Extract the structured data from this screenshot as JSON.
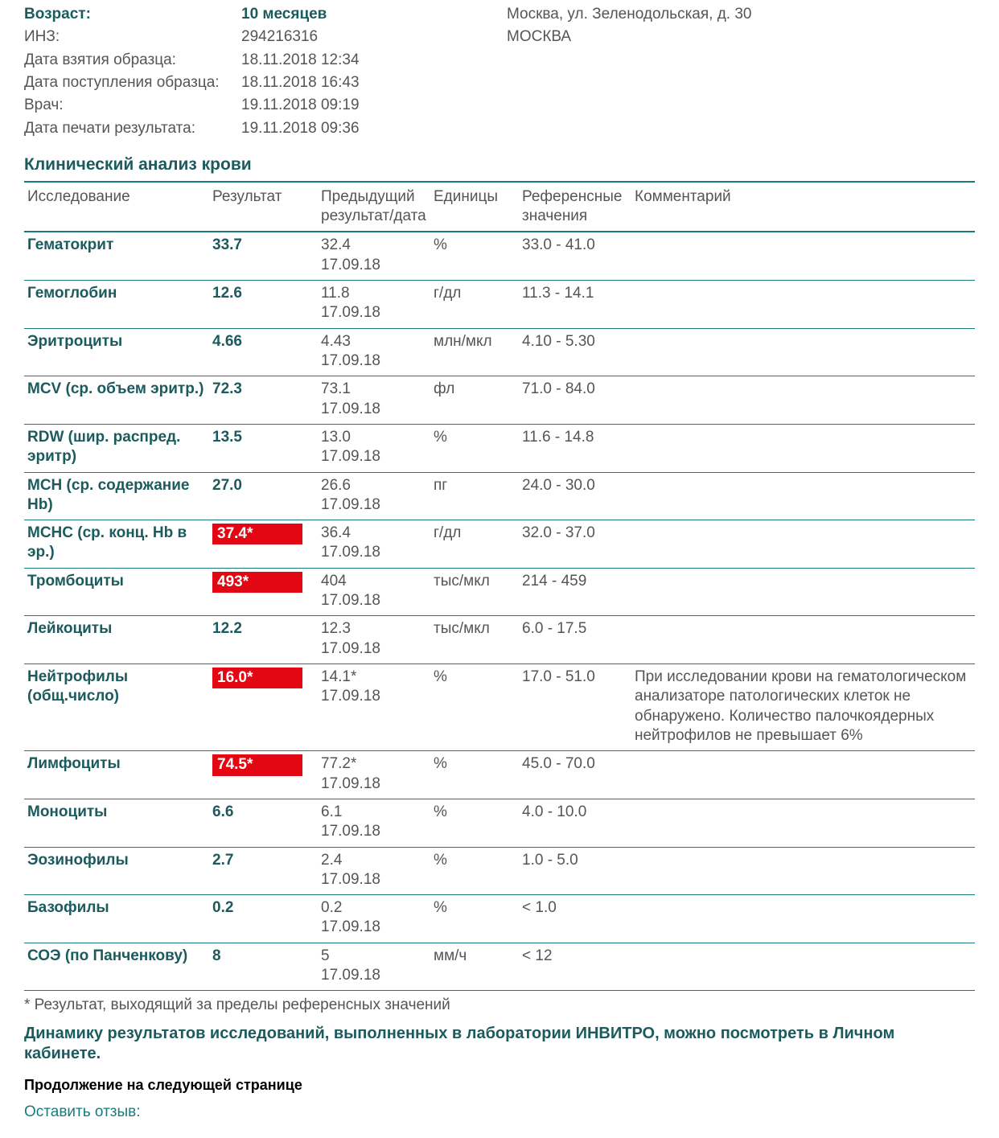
{
  "header": {
    "rows": [
      {
        "label": "Возраст:",
        "value": "10 месяцев",
        "right": "Москва, ул. Зеленодольская, д. 30",
        "bold": true
      },
      {
        "label": "ИНЗ:",
        "value": "294216316",
        "right": "МОСКВА",
        "bold": false
      },
      {
        "label": "Дата взятия образца:",
        "value": "18.11.2018 12:34",
        "right": "",
        "bold": false
      },
      {
        "label": "Дата поступления образца:",
        "value": "18.11.2018 16:43",
        "right": "",
        "bold": false
      },
      {
        "label": "Врач:",
        "value": "19.11.2018 09:19",
        "right": "",
        "bold": false
      },
      {
        "label": "Дата печати результата:",
        "value": "19.11.2018 09:36",
        "right": "",
        "bold": false
      }
    ]
  },
  "section_title": "Клинический анализ крови",
  "columns": {
    "test": "Исследование",
    "result": "Результат",
    "prev": "Предыдущий результат/дата",
    "units": "Единицы",
    "ref": "Референсные значения",
    "comment": "Комментарий"
  },
  "rows": [
    {
      "name": "Гематокрит",
      "result": "33.7",
      "flag": false,
      "prev_val": "32.4",
      "prev_date": "17.09.18",
      "units": "%",
      "ref": "33.0 - 41.0",
      "comment": ""
    },
    {
      "name": "Гемоглобин",
      "result": "12.6",
      "flag": false,
      "prev_val": "11.8",
      "prev_date": "17.09.18",
      "units": "г/дл",
      "ref": "11.3 - 14.1",
      "comment": ""
    },
    {
      "name": "Эритроциты",
      "result": "4.66",
      "flag": false,
      "prev_val": "4.43",
      "prev_date": "17.09.18",
      "units": "млн/мкл",
      "ref": "4.10 - 5.30",
      "comment": ""
    },
    {
      "name": "MCV (ср. объем эритр.)",
      "result": "72.3",
      "flag": false,
      "prev_val": "73.1",
      "prev_date": "17.09.18",
      "units": "фл",
      "ref": "71.0 - 84.0",
      "comment": ""
    },
    {
      "name": "RDW (шир. распред. эритр)",
      "result": "13.5",
      "flag": false,
      "prev_val": "13.0",
      "prev_date": "17.09.18",
      "units": "%",
      "ref": "11.6 - 14.8",
      "comment": ""
    },
    {
      "name": "MCH (ср. содержание Hb)",
      "result": "27.0",
      "flag": false,
      "prev_val": "26.6",
      "prev_date": "17.09.18",
      "units": "пг",
      "ref": "24.0 - 30.0",
      "comment": ""
    },
    {
      "name": "MCHC (ср. конц. Hb в эр.)",
      "result": "37.4*",
      "flag": true,
      "prev_val": "36.4",
      "prev_date": "17.09.18",
      "units": "г/дл",
      "ref": "32.0 - 37.0",
      "comment": ""
    },
    {
      "name": "Тромбоциты",
      "result": "493*",
      "flag": true,
      "prev_val": "404",
      "prev_date": "17.09.18",
      "units": "тыс/мкл",
      "ref": "214 - 459",
      "comment": ""
    },
    {
      "name": "Лейкоциты",
      "result": "12.2",
      "flag": false,
      "prev_val": "12.3",
      "prev_date": "17.09.18",
      "units": "тыс/мкл",
      "ref": "6.0 - 17.5",
      "comment": ""
    },
    {
      "name": "Нейтрофилы (общ.число)",
      "result": "16.0*",
      "flag": true,
      "prev_val": "14.1*",
      "prev_date": "17.09.18",
      "units": "%",
      "ref": "17.0 - 51.0",
      "comment": "При исследовании крови на гематологическом анализаторе патологических клеток не обнаружено. Количество палочкоядерных нейтрофилов не превышает 6%"
    },
    {
      "name": "Лимфоциты",
      "result": "74.5*",
      "flag": true,
      "prev_val": "77.2*",
      "prev_date": "17.09.18",
      "units": "%",
      "ref": "45.0 - 70.0",
      "comment": ""
    },
    {
      "name": "Моноциты",
      "result": "6.6",
      "flag": false,
      "prev_val": "6.1",
      "prev_date": "17.09.18",
      "units": "%",
      "ref": "4.0 - 10.0",
      "comment": ""
    },
    {
      "name": "Эозинофилы",
      "result": "2.7",
      "flag": false,
      "prev_val": "2.4",
      "prev_date": "17.09.18",
      "units": "%",
      "ref": "1.0 - 5.0",
      "comment": ""
    },
    {
      "name": "Базофилы",
      "result": "0.2",
      "flag": false,
      "prev_val": "0.2",
      "prev_date": "17.09.18",
      "units": "%",
      "ref": "< 1.0",
      "comment": ""
    },
    {
      "name": "СОЭ (по Панченкову)",
      "result": "8",
      "flag": false,
      "prev_val": "5",
      "prev_date": "17.09.18",
      "units": "мм/ч",
      "ref": "< 12",
      "comment": ""
    }
  ],
  "footnote": "* Результат, выходящий за пределы референсных значений",
  "dynamic_note": "Динамику результатов исследований, выполненных в лаборатории ИНВИТРО, можно посмотреть в Личном кабинете.",
  "continue_note": "Продолжение на следующей странице",
  "feedback": "Оставить отзыв:",
  "colors": {
    "teal": "#1b5b5e",
    "border": "#1b7a7d",
    "flag_bg": "#e30613",
    "text": "#555555"
  }
}
